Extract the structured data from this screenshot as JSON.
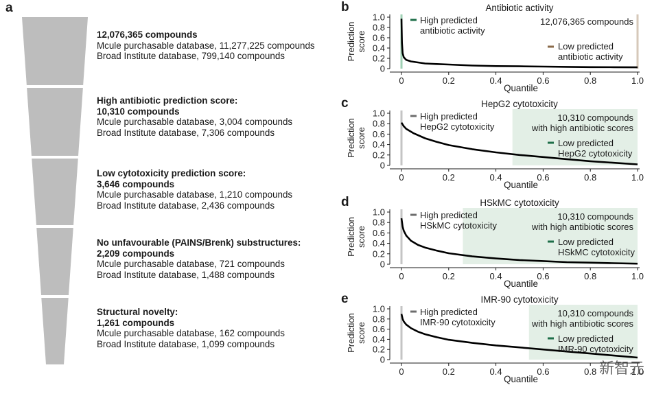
{
  "panel_a": {
    "letter": "a",
    "stages": [
      {
        "title": "",
        "count": "12,076,365 compounds",
        "mcule": "Mcule purchasable database, 11,277,225 compounds",
        "broad": "Broad Institute database, 799,140 compounds"
      },
      {
        "title": "High antibiotic prediction score:",
        "count": "10,310 compounds",
        "mcule": "Mcule purchasable database, 3,004 compounds",
        "broad": "Broad Institute database, 7,306 compounds"
      },
      {
        "title": "Low cytotoxicity prediction score:",
        "count": "3,646 compounds",
        "mcule": "Mcule purchasable database, 1,210 compounds",
        "broad": "Broad Institute database, 2,436 compounds"
      },
      {
        "title": "No unfavourable (PAINS/Brenk) substructures:",
        "count": "2,209 compounds",
        "mcule": "Mcule purchasable database, 721 compounds",
        "broad": "Broad Institute database, 1,488 compounds"
      },
      {
        "title": "Structural novelty:",
        "count": "1,261 compounds",
        "mcule": "Mcule purchasable database, 162 compounds",
        "broad": "Broad Institute database, 1,099 compounds"
      }
    ],
    "funnel_color": "#bdbdbd"
  },
  "watermark": "新智元",
  "colors": {
    "high": "#1e6e48",
    "low": "#8a6a4a",
    "grey": "#6d6d6d",
    "shade": "#e3efe6",
    "curve": "#000000"
  },
  "chart_data": [
    {
      "letter": "b",
      "type": "line",
      "title": "Antibiotic activity",
      "xlabel": "Quantile",
      "ylabel": "Prediction score",
      "xlim": [
        0,
        1
      ],
      "ylim": [
        0,
        1
      ],
      "xticks": [
        "0",
        "0.2",
        "0.4",
        "0.6",
        "0.8",
        "1.0"
      ],
      "yticks": [
        "0",
        "0.2",
        "0.4",
        "0.6",
        "0.8",
        "1.0"
      ],
      "x": [
        0,
        0.002,
        0.005,
        0.01,
        0.02,
        0.04,
        0.07,
        0.1,
        0.15,
        0.2,
        0.3,
        0.4,
        0.5,
        0.6,
        0.7,
        0.8,
        0.9,
        1.0
      ],
      "y": [
        0.97,
        0.5,
        0.3,
        0.22,
        0.17,
        0.14,
        0.12,
        0.1,
        0.09,
        0.08,
        0.06,
        0.05,
        0.045,
        0.04,
        0.035,
        0.03,
        0.028,
        0.025
      ],
      "high_label": "High predicted\nantibiotic activity",
      "low_label": "Low predicted\nantibiotic activity",
      "count_label": "12,076,365 compounds",
      "shade_from": null,
      "high_line": "green",
      "low_line": "brown"
    },
    {
      "letter": "c",
      "type": "line",
      "title": "HepG2 cytotoxicity",
      "xlabel": "Quantile",
      "ylabel": "Prediction score",
      "xlim": [
        0,
        1
      ],
      "ylim": [
        0,
        1
      ],
      "xticks": [
        "0",
        "0.2",
        "0.4",
        "0.6",
        "0.8",
        "1.0"
      ],
      "yticks": [
        "0",
        "0.2",
        "0.4",
        "0.6",
        "0.8",
        "1.0"
      ],
      "x": [
        0,
        0.01,
        0.02,
        0.05,
        0.1,
        0.15,
        0.2,
        0.3,
        0.4,
        0.5,
        0.6,
        0.7,
        0.8,
        0.9,
        1.0
      ],
      "y": [
        0.82,
        0.75,
        0.7,
        0.62,
        0.52,
        0.45,
        0.39,
        0.31,
        0.25,
        0.2,
        0.16,
        0.12,
        0.08,
        0.05,
        0.02
      ],
      "high_label": "High predicted\nHepG2 cytotoxicity",
      "low_label": "Low predicted\nHepG2 cytotoxicity",
      "count_label": "10,310 compounds\nwith high antibiotic scores",
      "shade_from": 0.47,
      "high_line": "grey",
      "low_line": "green"
    },
    {
      "letter": "d",
      "type": "line",
      "title": "HSkMC cytotoxicity",
      "xlabel": "Quantile",
      "ylabel": "Prediction score",
      "xlim": [
        0,
        1
      ],
      "ylim": [
        0,
        1
      ],
      "xticks": [
        "0",
        "0.2",
        "0.4",
        "0.6",
        "0.8",
        "1.0"
      ],
      "yticks": [
        "0",
        "0.2",
        "0.4",
        "0.6",
        "0.8",
        "1.0"
      ],
      "x": [
        0,
        0.005,
        0.01,
        0.02,
        0.04,
        0.07,
        0.1,
        0.15,
        0.2,
        0.3,
        0.4,
        0.5,
        0.6,
        0.7,
        0.8,
        0.9,
        1.0
      ],
      "y": [
        0.88,
        0.72,
        0.64,
        0.55,
        0.45,
        0.37,
        0.32,
        0.26,
        0.21,
        0.15,
        0.11,
        0.08,
        0.06,
        0.04,
        0.03,
        0.02,
        0.01
      ],
      "high_label": "High predicted\nHSkMC cytotoxicity",
      "low_label": "Low predicted\nHSkMC cytotoxicity",
      "count_label": "10,310 compounds\nwith high antibiotic scores",
      "shade_from": 0.26,
      "high_line": "grey",
      "low_line": "green"
    },
    {
      "letter": "e",
      "type": "line",
      "title": "IMR-90 cytotoxicity",
      "xlabel": "Quantile",
      "ylabel": "Prediction score",
      "xlim": [
        0,
        1
      ],
      "ylim": [
        0,
        1
      ],
      "xticks": [
        "0",
        "0.2",
        "0.4",
        "0.6",
        "0.8",
        "1.0"
      ],
      "yticks": [
        "0",
        "0.2",
        "0.4",
        "0.6",
        "0.8",
        "1.0"
      ],
      "x": [
        0,
        0.005,
        0.01,
        0.02,
        0.04,
        0.07,
        0.1,
        0.15,
        0.2,
        0.3,
        0.4,
        0.5,
        0.6,
        0.7,
        0.8,
        0.9,
        1.0
      ],
      "y": [
        0.9,
        0.8,
        0.75,
        0.69,
        0.62,
        0.55,
        0.5,
        0.44,
        0.39,
        0.33,
        0.28,
        0.24,
        0.2,
        0.16,
        0.12,
        0.08,
        0.04
      ],
      "high_label": "High predicted\nIMR-90 cytotoxicity",
      "low_label": "Low predicted\nIMR-90 cytotoxicity",
      "count_label": "10,310 compounds\nwith high antibiotic scores",
      "shade_from": 0.54,
      "high_line": "grey",
      "low_line": "green"
    }
  ]
}
